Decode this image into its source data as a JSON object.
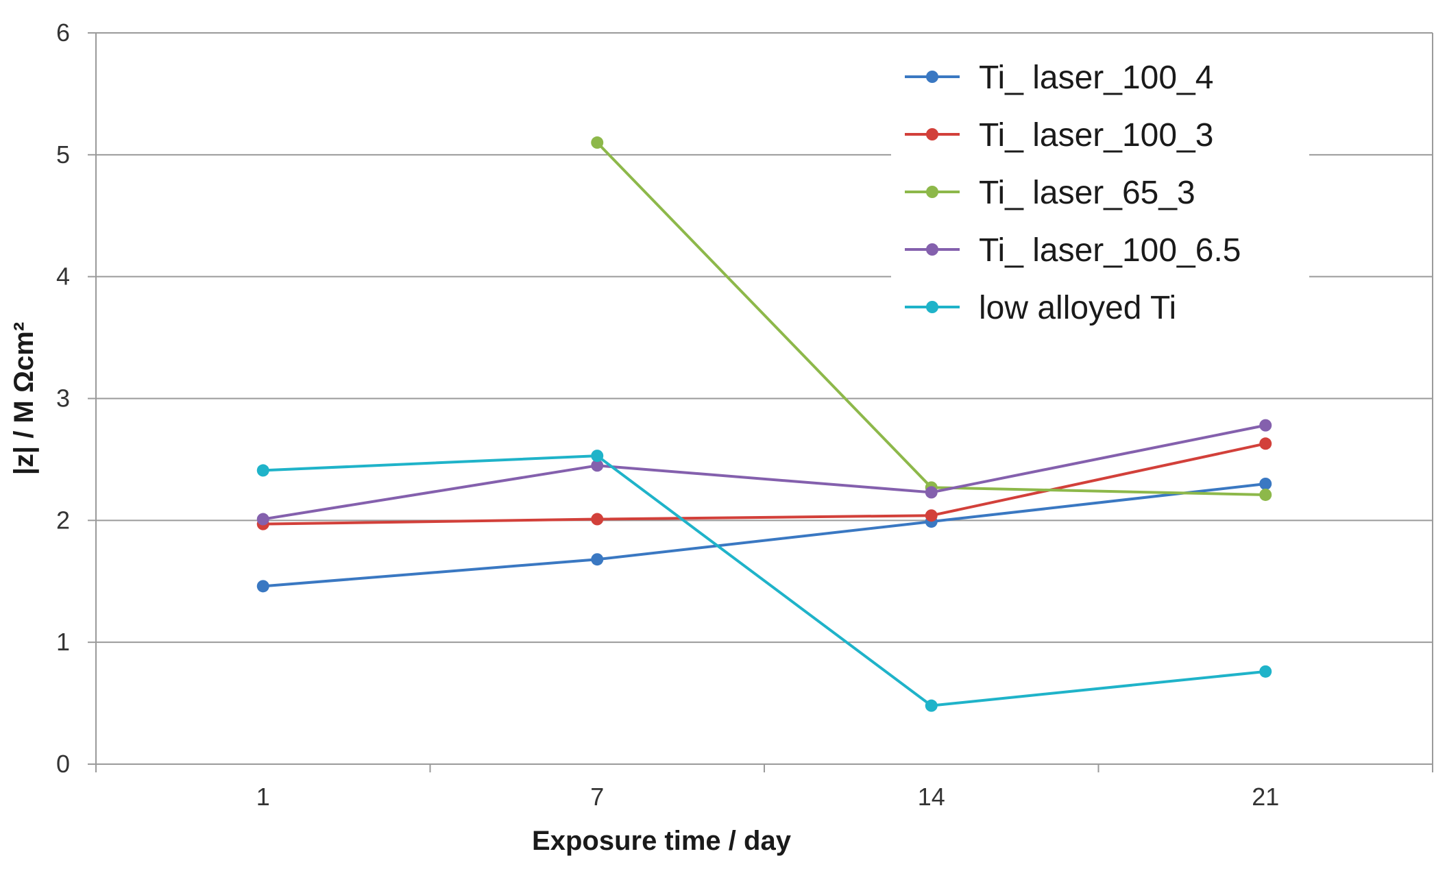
{
  "chart_data": {
    "type": "line",
    "title": "",
    "xlabel": "Exposure time  /  day",
    "ylabel": "|z| / M Ωcm²",
    "categories": [
      "1",
      "7",
      "14",
      "21"
    ],
    "ylim": [
      0,
      6
    ],
    "yticks": [
      "0",
      "1",
      "2",
      "3",
      "4",
      "5",
      "6"
    ],
    "grid": true,
    "legend_position": "top-right",
    "series": [
      {
        "name": "Ti_ laser_100_4",
        "color": "#3a78c2",
        "values": [
          1.46,
          1.68,
          1.99,
          2.3
        ]
      },
      {
        "name": "Ti_ laser_100_3",
        "color": "#d2403a",
        "values": [
          1.97,
          2.01,
          2.04,
          2.63
        ]
      },
      {
        "name": "Ti_ laser_65_3",
        "color": "#8db84a",
        "values": [
          null,
          5.1,
          2.27,
          2.21
        ]
      },
      {
        "name": "Ti_ laser_100_6.5",
        "color": "#8460ad",
        "values": [
          2.01,
          2.45,
          2.23,
          2.78
        ]
      },
      {
        "name": "low alloyed Ti",
        "color": "#1fb3c9",
        "values": [
          2.41,
          2.53,
          0.48,
          0.76
        ]
      }
    ]
  }
}
